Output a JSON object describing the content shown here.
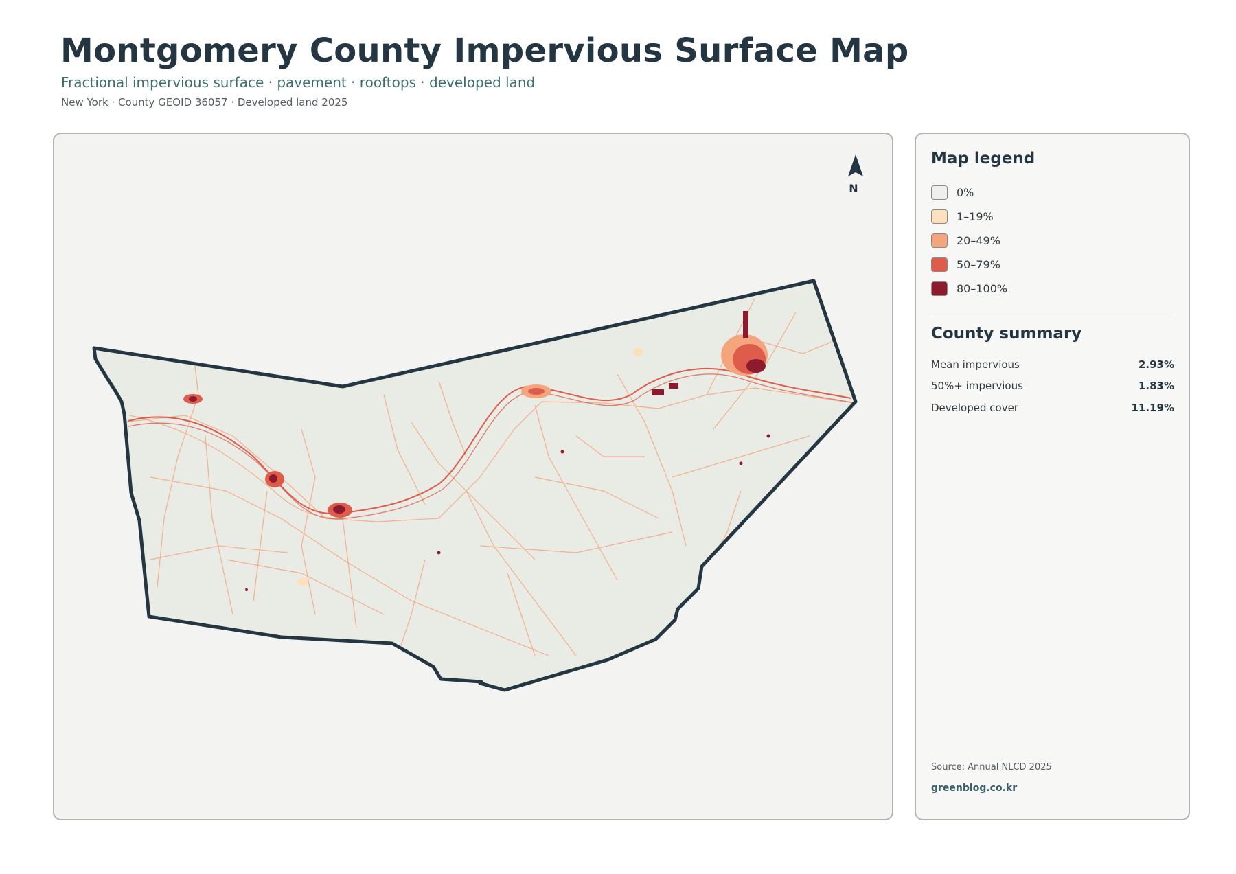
{
  "header": {
    "title": "Montgomery County Impervious Surface Map",
    "subtitle": "Fractional impervious surface · pavement · rooftops · developed land",
    "meta": "New York · County GEOID 36057 · Developed land 2025"
  },
  "map": {
    "north_label": "N",
    "fill_color": "#e9ebe5",
    "border_color": "#243642"
  },
  "legend": {
    "title": "Map legend",
    "items": [
      {
        "label": "0%",
        "color": "#efefec"
      },
      {
        "label": "1–19%",
        "color": "#fde0bd"
      },
      {
        "label": "20–49%",
        "color": "#f5a57d"
      },
      {
        "label": "50–79%",
        "color": "#dd5c4c"
      },
      {
        "label": "80–100%",
        "color": "#8e1a2e"
      }
    ]
  },
  "summary": {
    "title": "County summary",
    "rows": [
      {
        "label": "Mean impervious",
        "value": "2.93%"
      },
      {
        "label": "50%+ impervious",
        "value": "1.83%"
      },
      {
        "label": "Developed cover",
        "value": "11.19%"
      }
    ]
  },
  "footer": {
    "source": "Source: Annual NLCD 2025",
    "site": "greenblog.co.kr"
  }
}
